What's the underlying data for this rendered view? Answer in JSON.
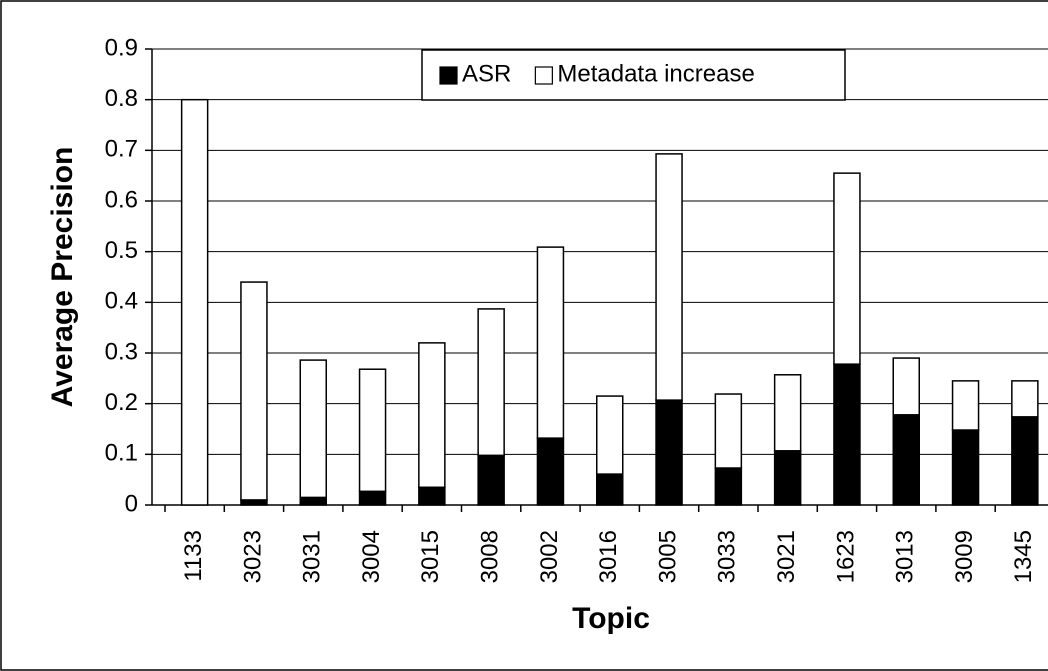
{
  "chart_data": {
    "type": "stacked_bar",
    "x_label": "Topic",
    "y_label": "Average Precision",
    "categories": [
      "1133",
      "3023",
      "3031",
      "3004",
      "3015",
      "3008",
      "3002",
      "3016",
      "3005",
      "3033",
      "3021",
      "1623",
      "3013",
      "3009",
      "1345"
    ],
    "series": [
      {
        "name": "ASR",
        "color": "#000000",
        "values": [
          0,
          0.01,
          0.015,
          0.027,
          0.035,
          0.098,
          0.132,
          0.061,
          0.207,
          0.073,
          0.107,
          0.278,
          0.178,
          0.148,
          0.174
        ]
      },
      {
        "name": "Metadata increase",
        "color": "#ffffff",
        "values": [
          0.8,
          0.43,
          0.271,
          0.241,
          0.285,
          0.289,
          0.377,
          0.154,
          0.486,
          0.146,
          0.15,
          0.377,
          0.112,
          0.097,
          0.071
        ]
      }
    ],
    "ylim": [
      0,
      0.9
    ],
    "yticks": [
      0,
      0.1,
      0.2,
      0.3,
      0.4,
      0.5,
      0.6,
      0.7,
      0.8,
      0.9
    ],
    "grid": true,
    "legend": "top"
  }
}
